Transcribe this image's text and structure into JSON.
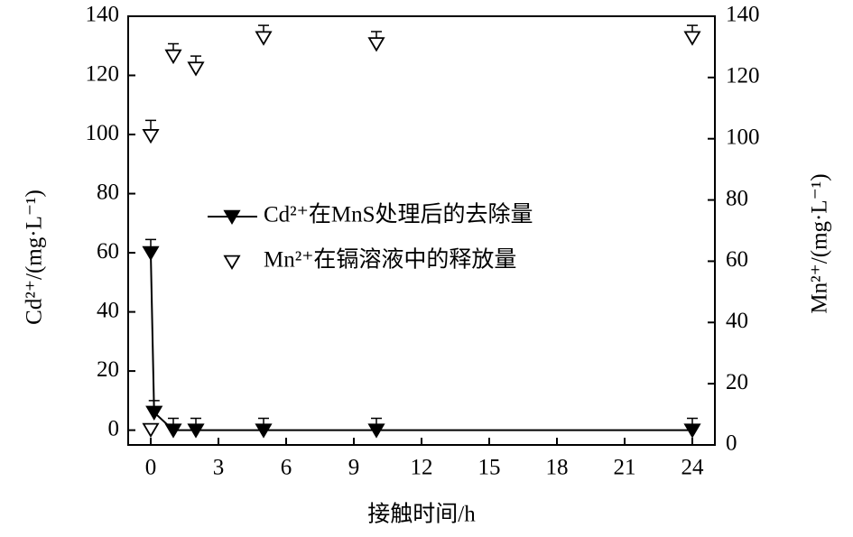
{
  "chart_data": {
    "type": "scatter",
    "x_label": "接触时间/h",
    "y_label": "Cd²⁺/(mg·L⁻¹)",
    "y2_label": "Mn²⁺/(mg·L⁻¹)",
    "xlim": [
      -1,
      25
    ],
    "xticks": [
      0,
      3,
      6,
      9,
      12,
      15,
      18,
      21,
      24
    ],
    "ylim": [
      -5,
      140
    ],
    "yticks": [
      0,
      20,
      40,
      60,
      80,
      100,
      120,
      140
    ],
    "y2lim": [
      0,
      140
    ],
    "y2ticks": [
      0,
      20,
      40,
      60,
      80,
      100,
      120,
      140
    ],
    "series": [
      {
        "name": "Cd²⁺在MnS处理后的去除量",
        "color": "#000000",
        "filled": true,
        "line": true,
        "x": [
          0,
          0.15,
          1,
          2,
          5,
          10,
          24
        ],
        "values": [
          60,
          6,
          0,
          0,
          0,
          0,
          0
        ],
        "errors": [
          4.5,
          4,
          4,
          4,
          4,
          4,
          4
        ]
      },
      {
        "name": "Mn²⁺在镉溶液中的释放量",
        "color": "#000000",
        "filled": false,
        "line": false,
        "axis": "y2",
        "x": [
          0,
          0,
          1,
          2,
          5,
          10,
          24
        ],
        "values": [
          5,
          101,
          127,
          123,
          133,
          131,
          133
        ],
        "errors": [
          null,
          5,
          4,
          4,
          4,
          4,
          4
        ]
      }
    ]
  }
}
